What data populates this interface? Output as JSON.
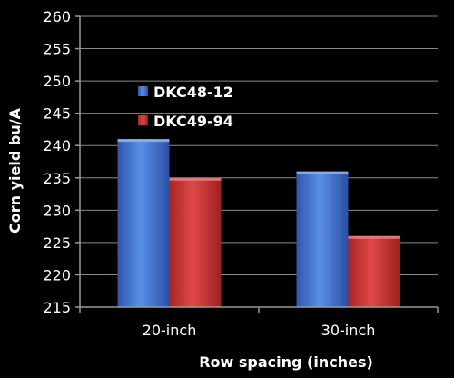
{
  "chart_data": {
    "type": "bar",
    "title": "",
    "xlabel": "Row spacing (inches)",
    "ylabel": "Corn yield bu/A",
    "categories": [
      "20-inch",
      "30-inch"
    ],
    "series": [
      {
        "name": "DKC48-12",
        "values": [
          241,
          236
        ],
        "color": "#3f6fd0"
      },
      {
        "name": "DKC49-94",
        "values": [
          235,
          226
        ],
        "color": "#cf3535"
      }
    ],
    "ylim": [
      215,
      260
    ],
    "yticks": [
      215,
      220,
      225,
      230,
      235,
      240,
      245,
      250,
      255,
      260
    ],
    "grid": true,
    "legend_position": "top-left"
  }
}
